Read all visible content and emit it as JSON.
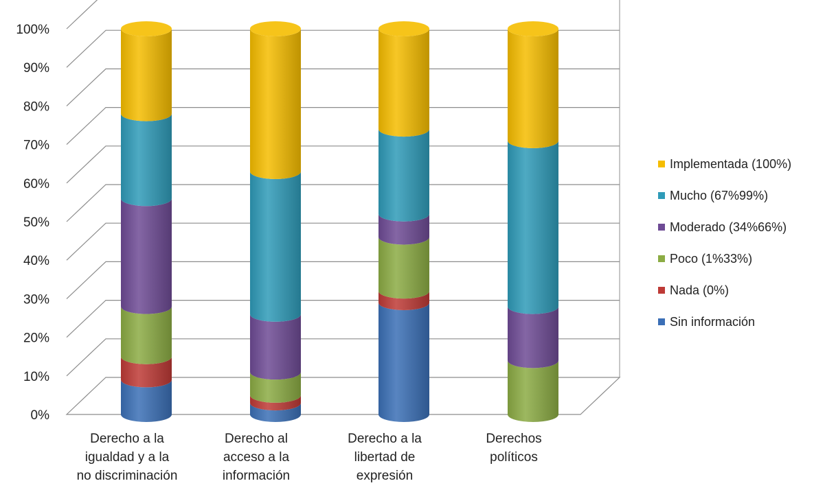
{
  "chart_data": {
    "type": "bar",
    "stacked": true,
    "style": "3d-cylinder",
    "categories": [
      [
        "Derecho a la",
        "igualdad y a la",
        "no discriminación"
      ],
      [
        "Derecho al",
        "acceso a la",
        "información"
      ],
      [
        "Derecho a la",
        "libertad de",
        "expresión"
      ],
      [
        "Derechos",
        "políticos"
      ]
    ],
    "series": [
      {
        "name": "Sin información",
        "color": "#3b6fb6",
        "values": [
          9,
          3,
          29,
          0
        ]
      },
      {
        "name": "Nada (0%)",
        "color": "#be3a36",
        "values": [
          6,
          2,
          3,
          0
        ]
      },
      {
        "name": "Poco (1%33%)",
        "color": "#8cac44",
        "values": [
          13,
          6,
          14,
          14
        ]
      },
      {
        "name": "Moderado (34%66%)",
        "color": "#6e4b95",
        "values": [
          28,
          15,
          6,
          14
        ]
      },
      {
        "name": "Mucho (67%99%)",
        "color": "#2f9bb8",
        "values": [
          22,
          37,
          22,
          43
        ]
      },
      {
        "name": "Implementada (100%)",
        "color": "#f5bd00",
        "values": [
          22,
          37,
          26,
          29
        ]
      }
    ],
    "y_ticks": [
      "0%",
      "10%",
      "20%",
      "30%",
      "40%",
      "50%",
      "60%",
      "70%",
      "80%",
      "90%",
      "100%"
    ],
    "ylim": [
      0,
      100
    ],
    "grid": true,
    "legend_position": "right",
    "title": "",
    "xlabel": "",
    "ylabel": ""
  }
}
